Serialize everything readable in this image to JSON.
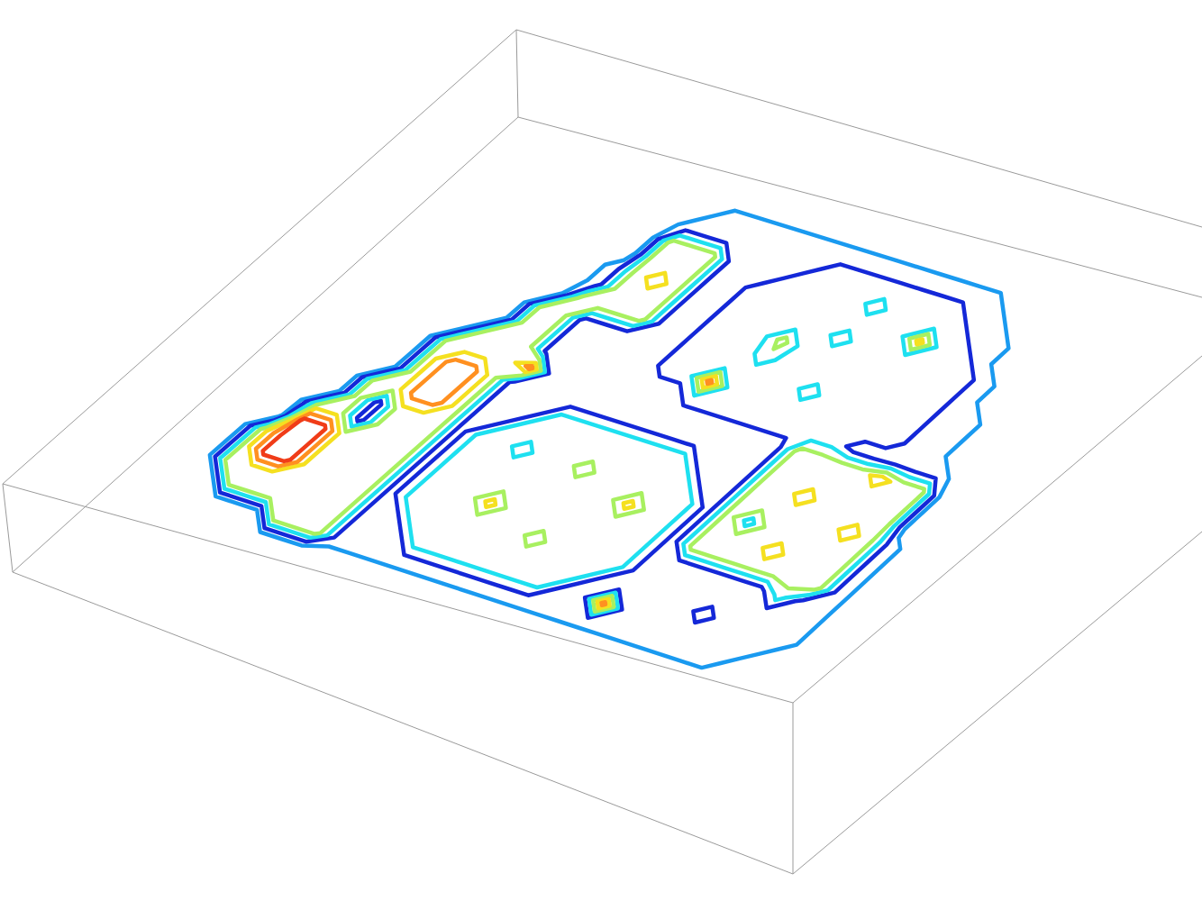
{
  "chart_data": {
    "type": "contour",
    "levels": [
      0.5,
      1.5,
      2.5,
      3.5,
      4.5,
      5.5,
      6.5
    ],
    "colors": [
      "#1a9af0",
      "#1428d8",
      "#1ee0f0",
      "#a8f060",
      "#f5e020",
      "#ff9020",
      "#f03c18"
    ],
    "z": [
      [
        0,
        0,
        0,
        0,
        0,
        0,
        0,
        0,
        0,
        0,
        0,
        0,
        0,
        0,
        0,
        0,
        0,
        0,
        0,
        0,
        0,
        0,
        0,
        0,
        0,
        0,
        0,
        0,
        0,
        0
      ],
      [
        0,
        0,
        0,
        0,
        0,
        4,
        4,
        4,
        1,
        1,
        1,
        1,
        1,
        1,
        1,
        1,
        1,
        1,
        1,
        1,
        1,
        1,
        1,
        1,
        1,
        1,
        1,
        0,
        0,
        0
      ],
      [
        0,
        0,
        4,
        4,
        4,
        4,
        4,
        4,
        1,
        1,
        1,
        3,
        3,
        3,
        3,
        3,
        3,
        3,
        1,
        1,
        6,
        1,
        1,
        1,
        1,
        1,
        1,
        1,
        0,
        0
      ],
      [
        0,
        4,
        4,
        4,
        4,
        4,
        4,
        4,
        1,
        1,
        3,
        3,
        3,
        3,
        3,
        3,
        3,
        3,
        3,
        1,
        1,
        1,
        1,
        1,
        2,
        1,
        1,
        1,
        1,
        0
      ],
      [
        0,
        4,
        7,
        7,
        4,
        4,
        4,
        4,
        1,
        3,
        3,
        3,
        3,
        3,
        3,
        4,
        3,
        3,
        3,
        3,
        1,
        1,
        1,
        1,
        1,
        1,
        1,
        1,
        1,
        0
      ],
      [
        0,
        4,
        7,
        7,
        4,
        4,
        4,
        4,
        1,
        3,
        3,
        3,
        5,
        3,
        3,
        3,
        3,
        3,
        3,
        3,
        1,
        1,
        1,
        1,
        1,
        1,
        3,
        1,
        1,
        0
      ],
      [
        0,
        0,
        7,
        7,
        4,
        4,
        4,
        4,
        1,
        3,
        3,
        3,
        3,
        3,
        3,
        3,
        3,
        3,
        3,
        3,
        1,
        4,
        4,
        4,
        4,
        4,
        4,
        4,
        1,
        0
      ],
      [
        0,
        0,
        4,
        4,
        1,
        4,
        4,
        4,
        1,
        3,
        3,
        3,
        3,
        3,
        3,
        3,
        3,
        5,
        3,
        3,
        1,
        4,
        4,
        4,
        5,
        4,
        4,
        4,
        1,
        0
      ],
      [
        0,
        0,
        0,
        4,
        1,
        4,
        4,
        4,
        1,
        3,
        3,
        2,
        3,
        3,
        4,
        3,
        3,
        3,
        3,
        3,
        1,
        4,
        2,
        4,
        4,
        4,
        4,
        4,
        1,
        0
      ],
      [
        0,
        0,
        0,
        4,
        4,
        6,
        6,
        4,
        1,
        1,
        3,
        3,
        3,
        3,
        3,
        3,
        3,
        3,
        3,
        1,
        1,
        4,
        4,
        4,
        4,
        4,
        5,
        4,
        1,
        0
      ],
      [
        0,
        0,
        0,
        0,
        4,
        6,
        6,
        4,
        1,
        1,
        1,
        3,
        3,
        3,
        3,
        3,
        3,
        3,
        1,
        1,
        1,
        4,
        4,
        5,
        4,
        4,
        4,
        4,
        0,
        0
      ],
      [
        0,
        0,
        0,
        0,
        4,
        6,
        6,
        4,
        1,
        1,
        1,
        1,
        1,
        1,
        1,
        1,
        1,
        1,
        1,
        1,
        1,
        4,
        4,
        4,
        4,
        4,
        4,
        4,
        0,
        0
      ],
      [
        0,
        0,
        0,
        0,
        4,
        4,
        4,
        4,
        6,
        1,
        1,
        1,
        1,
        1,
        1,
        1,
        1,
        1,
        1,
        1,
        1,
        4,
        4,
        4,
        4,
        5,
        4,
        4,
        0,
        0
      ],
      [
        0,
        0,
        0,
        0,
        0,
        4,
        4,
        4,
        1,
        1,
        1,
        1,
        1,
        1,
        1,
        2,
        2,
        2,
        2,
        2,
        2,
        2,
        2,
        1,
        1,
        1,
        1,
        1,
        0,
        0
      ],
      [
        0,
        0,
        0,
        0,
        0,
        0,
        4,
        4,
        1,
        1,
        1,
        1,
        1,
        2,
        2,
        6,
        2,
        2,
        2,
        2,
        2,
        2,
        2,
        2,
        2,
        1,
        1,
        0,
        0,
        0
      ],
      [
        0,
        0,
        0,
        0,
        0,
        0,
        4,
        4,
        1,
        1,
        1,
        1,
        1,
        2,
        2,
        2,
        2,
        2,
        2,
        3,
        2,
        2,
        2,
        2,
        2,
        1,
        1,
        0,
        0,
        0
      ],
      [
        0,
        0,
        0,
        0,
        0,
        0,
        0,
        4,
        4,
        4,
        4,
        1,
        1,
        2,
        2,
        2,
        3,
        2,
        2,
        2,
        2,
        2,
        2,
        2,
        2,
        1,
        1,
        0,
        0,
        0
      ],
      [
        0,
        0,
        0,
        0,
        0,
        0,
        0,
        1,
        4,
        4,
        4,
        1,
        1,
        2,
        2,
        2,
        4,
        2,
        2,
        2,
        2,
        2,
        2,
        2,
        2,
        1,
        0,
        0,
        0,
        0
      ],
      [
        0,
        0,
        0,
        0,
        0,
        0,
        0,
        1,
        4,
        5,
        4,
        1,
        1,
        2,
        2,
        2,
        2,
        2,
        3,
        2,
        2,
        2,
        2,
        2,
        2,
        1,
        0,
        0,
        0,
        0
      ],
      [
        0,
        0,
        0,
        0,
        0,
        0,
        0,
        0,
        4,
        4,
        4,
        1,
        1,
        2,
        2,
        2,
        2,
        2,
        2,
        2,
        2,
        5,
        2,
        2,
        1,
        0,
        0,
        0,
        0,
        0
      ],
      [
        0,
        0,
        0,
        0,
        0,
        0,
        0,
        0,
        4,
        4,
        4,
        1,
        1,
        1,
        2,
        2,
        2,
        2,
        3,
        2,
        2,
        2,
        2,
        1,
        1,
        0,
        0,
        0,
        0,
        0
      ],
      [
        0,
        0,
        0,
        0,
        0,
        0,
        0,
        0,
        1,
        1,
        1,
        1,
        1,
        1,
        1,
        2,
        2,
        2,
        2,
        2,
        2,
        2,
        1,
        1,
        0,
        0,
        0,
        0,
        0,
        0
      ],
      [
        0,
        0,
        0,
        0,
        0,
        0,
        0,
        0,
        0,
        1,
        1,
        1,
        1,
        1,
        1,
        1,
        1,
        1,
        1,
        1,
        1,
        1,
        1,
        0,
        0,
        0,
        0,
        0,
        0,
        0
      ],
      [
        0,
        0,
        0,
        0,
        0,
        0,
        0,
        0,
        0,
        0,
        0,
        0,
        0,
        0,
        0,
        0,
        0,
        0,
        0,
        0,
        0,
        0,
        0,
        0,
        0,
        0,
        0,
        0,
        0,
        0
      ]
    ]
  }
}
